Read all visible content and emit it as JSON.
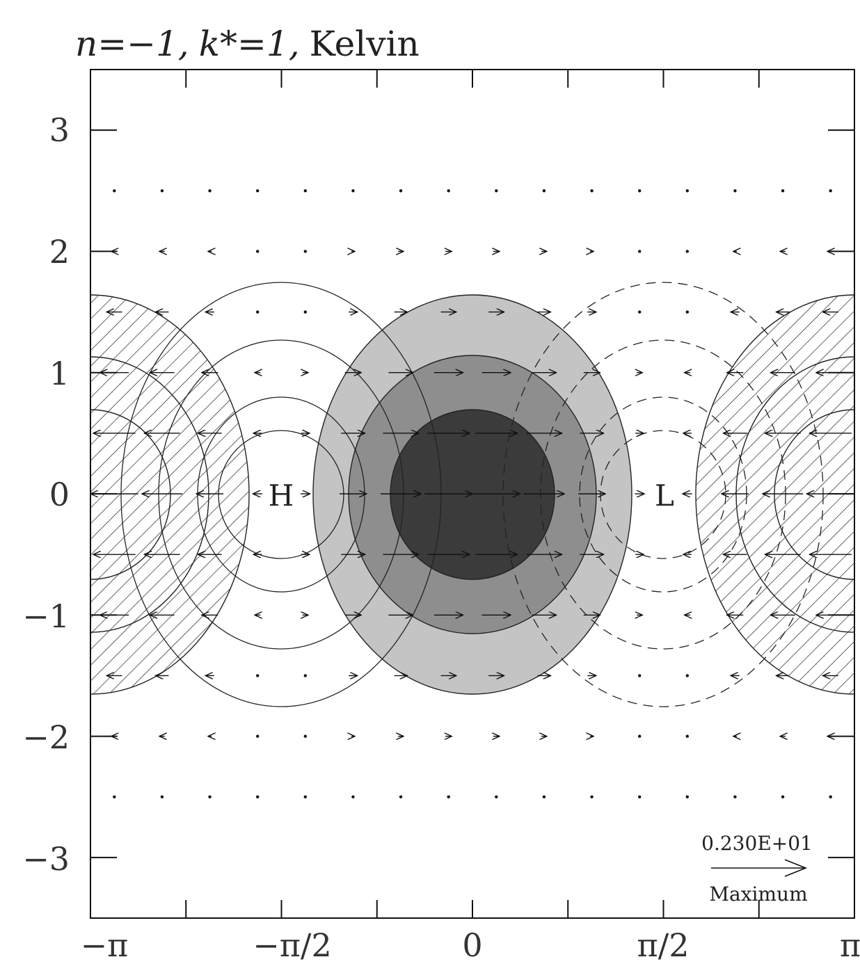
{
  "title": {
    "n_part": "n=−1,",
    "k_part": "k*=1,",
    "wave": "Kelvin"
  },
  "x_ticks": [
    "−π",
    "−π/2",
    "0",
    "π/2",
    "π"
  ],
  "y_ticks": [
    "3",
    "2",
    "1",
    "0",
    "−1",
    "−2",
    "−3"
  ],
  "xlim": [
    -3.14159,
    3.14159
  ],
  "ylim": [
    -3.5,
    3.5
  ],
  "labels": {
    "high": "H",
    "low": "L"
  },
  "key": {
    "magnitude": "0.230E+01",
    "caption": "Maximum"
  }
}
